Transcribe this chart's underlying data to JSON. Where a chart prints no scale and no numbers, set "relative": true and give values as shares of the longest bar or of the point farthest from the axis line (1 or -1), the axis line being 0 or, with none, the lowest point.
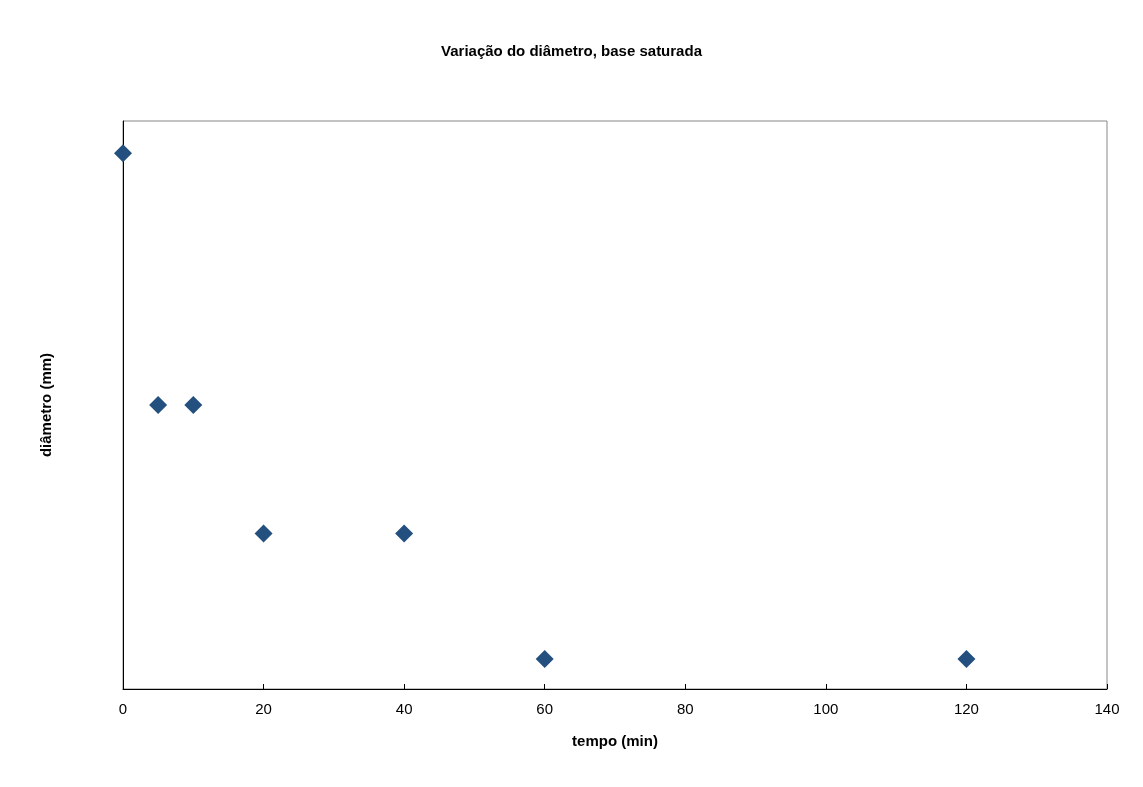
{
  "chart_data": {
    "type": "scatter",
    "title": "Variação do diâmetro, base saturada",
    "xlabel": "tempo (min)",
    "ylabel": "diâmetro (mm)",
    "relative": true,
    "x": [
      0,
      5,
      10,
      20,
      40,
      60,
      120
    ],
    "series": [
      {
        "color": "#24507f",
        "values": [
          1,
          0.53,
          0.53,
          0.29,
          0.29,
          0.056,
          0.056
        ]
      }
    ],
    "xlim": [
      0,
      140
    ],
    "xticks": [
      0,
      20,
      40,
      60,
      80,
      100,
      120,
      140
    ],
    "marker": "diamond",
    "grid": false
  }
}
